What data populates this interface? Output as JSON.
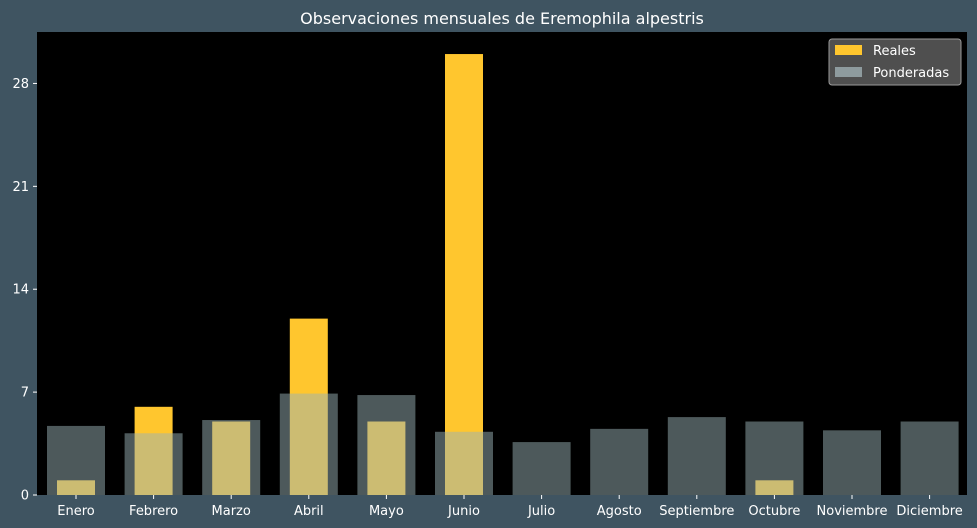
{
  "chart_data": {
    "type": "bar",
    "title": "Observaciones mensuales de Eremophila alpestris",
    "xlabel": "",
    "ylabel": "",
    "categories": [
      "Enero",
      "Febrero",
      "Marzo",
      "Abril",
      "Mayo",
      "Junio",
      "Julio",
      "Agosto",
      "Septiembre",
      "Octubre",
      "Noviembre",
      "Diciembre"
    ],
    "series": [
      {
        "name": "Reales",
        "color": "#ffc62e",
        "values": [
          1,
          6,
          5,
          12,
          5,
          30,
          0,
          0,
          0,
          1,
          0,
          0
        ]
      },
      {
        "name": "Ponderadas",
        "color": "#9ab1b6",
        "opacity": 0.5,
        "values": [
          4.7,
          4.2,
          5.1,
          6.9,
          6.8,
          4.3,
          3.6,
          4.5,
          5.3,
          5.0,
          4.4,
          5.0
        ]
      }
    ],
    "ylim": [
      0,
      31.5
    ],
    "yticks": [
      0,
      7,
      14,
      21,
      28
    ],
    "legend_position": "top-right",
    "grid": false,
    "colors": {
      "figure_background": "#3f5461",
      "plot_background": "#000000",
      "legend_background": "#4f4f4f",
      "text": "#ffffff"
    }
  }
}
